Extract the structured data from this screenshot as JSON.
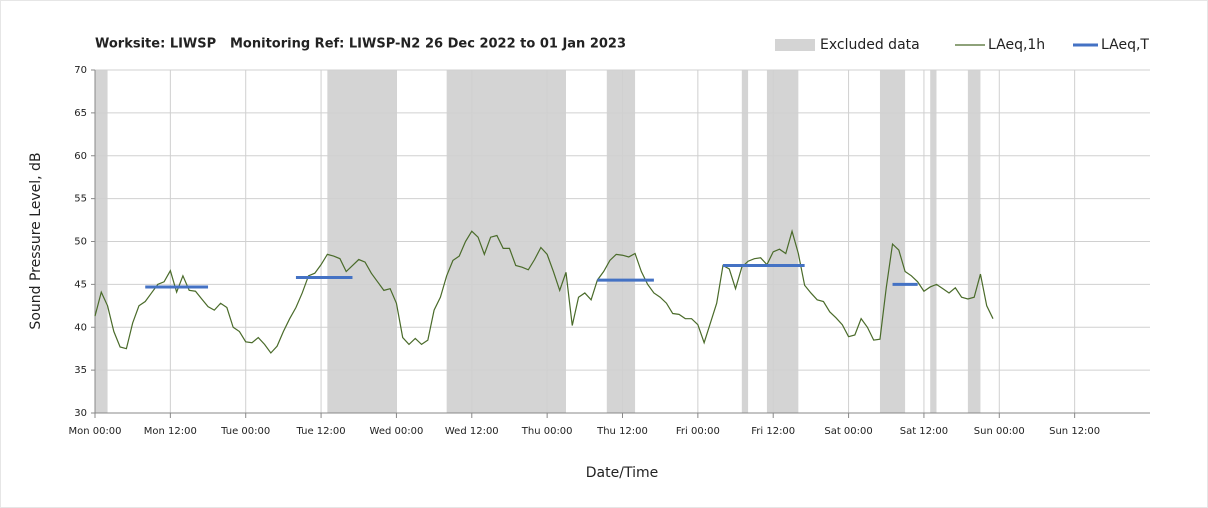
{
  "chart_data": {
    "type": "line",
    "title_parts": [
      "Worksite: LIWSP",
      "Monitoring Ref: LIWSP-N2",
      "26 Dec 2022 to 01 Jan 2023"
    ],
    "x_label": "Date/Time",
    "y_label": "Sound Pressure Level, dB",
    "xlim": [
      0,
      168
    ],
    "xticks": [
      {
        "value": 0,
        "label": "Mon 00:00"
      },
      {
        "value": 12,
        "label": "Mon 12:00"
      },
      {
        "value": 24,
        "label": "Tue 00:00"
      },
      {
        "value": 36,
        "label": "Tue 12:00"
      },
      {
        "value": 48,
        "label": "Wed 00:00"
      },
      {
        "value": 60,
        "label": "Wed 12:00"
      },
      {
        "value": 72,
        "label": "Thu 00:00"
      },
      {
        "value": 84,
        "label": "Thu 12:00"
      },
      {
        "value": 96,
        "label": "Fri 00:00"
      },
      {
        "value": 108,
        "label": "Fri 12:00"
      },
      {
        "value": 120,
        "label": "Sat 00:00"
      },
      {
        "value": 132,
        "label": "Sat 12:00"
      },
      {
        "value": 144,
        "label": "Sun 00:00"
      },
      {
        "value": 156,
        "label": "Sun 12:00"
      }
    ],
    "ylim": [
      30,
      70
    ],
    "yticks": [
      30,
      35,
      40,
      45,
      50,
      55,
      60,
      65,
      70
    ],
    "grid": true,
    "legend": "top-right",
    "excluded": {
      "name": "Excluded data",
      "color": "#d4d4d4",
      "ranges": [
        [
          0,
          2
        ],
        [
          37,
          48
        ],
        [
          56,
          75
        ],
        [
          81.5,
          86
        ],
        [
          103,
          104
        ],
        [
          107,
          112
        ],
        [
          125,
          129
        ],
        [
          133,
          134
        ],
        [
          139,
          141
        ]
      ]
    },
    "series": [
      {
        "name": "LAeq,1h",
        "color": "#4a6b2a",
        "x": [
          0,
          1,
          2,
          3,
          4,
          5,
          6,
          7,
          8,
          9,
          10,
          11,
          12,
          13,
          14,
          15,
          16,
          17,
          18,
          19,
          20,
          21,
          22,
          23,
          24,
          25,
          26,
          27,
          28,
          29,
          30,
          31,
          32,
          33,
          34,
          35,
          36,
          37,
          38,
          39,
          40,
          41,
          42,
          43,
          44,
          45,
          46,
          47,
          48,
          49,
          50,
          51,
          52,
          53,
          54,
          55,
          56,
          57,
          58,
          59,
          60,
          61,
          62,
          63,
          64,
          65,
          66,
          67,
          68,
          69,
          70,
          71,
          72,
          73,
          74,
          75,
          76,
          77,
          78,
          79,
          80,
          81,
          82,
          83,
          84,
          85,
          86,
          87,
          88,
          89,
          90,
          91,
          92,
          93,
          94,
          95,
          96,
          97,
          98,
          99,
          100,
          101,
          102,
          103,
          104,
          105,
          106,
          107,
          108,
          109,
          110,
          111,
          112,
          113,
          114,
          115,
          116,
          117,
          118,
          119,
          120,
          121,
          122,
          123,
          124,
          125,
          126,
          127,
          128,
          129,
          130,
          131,
          132,
          133,
          134,
          135,
          136,
          137,
          138,
          139,
          140,
          141,
          142,
          143
        ],
        "values": [
          41.3,
          44.1,
          42.5,
          39.5,
          37.7,
          37.5,
          40.5,
          42.5,
          43,
          44,
          45,
          45.3,
          46.6,
          44.1,
          46,
          44.3,
          44.2,
          43.3,
          42.4,
          42,
          42.8,
          42.3,
          40,
          39.5,
          38.3,
          38.2,
          38.8,
          38,
          37,
          37.8,
          39.5,
          41,
          42.3,
          44,
          46,
          46.3,
          47.3,
          48.5,
          48.3,
          48,
          46.5,
          47.2,
          47.9,
          47.6,
          46.3,
          45.3,
          44.3,
          44.5,
          42.8,
          38.8,
          38,
          38.7,
          38,
          38.5,
          42,
          43.5,
          46,
          47.8,
          48.3,
          50,
          51.2,
          50.5,
          48.5,
          50.5,
          50.7,
          49.2,
          49.2,
          47.2,
          47,
          46.7,
          47.9,
          49.3,
          48.5,
          46.5,
          44.3,
          46.4,
          40.2,
          43.5,
          44,
          43.2,
          45.5,
          46.5,
          47.8,
          48.5,
          48.4,
          48.2,
          48.6,
          46.5,
          45,
          44,
          43.5,
          42.8,
          41.6,
          41.5,
          41,
          41,
          40.3,
          38.2,
          40.5,
          42.8,
          47.2,
          46.8,
          44.5,
          47,
          47.7,
          48,
          48.1,
          47.3,
          48.8,
          49.1,
          48.6,
          51.2,
          48.6,
          44.9,
          44,
          43.2,
          43,
          41.8,
          41.1,
          40.3,
          38.9,
          39.1,
          41,
          40,
          38.5,
          38.6,
          44.6,
          49.7,
          49,
          46.5,
          46,
          45.3,
          44.2,
          44.7,
          45,
          44.5,
          44,
          44.6,
          43.5,
          43.3,
          43.5,
          46.2,
          42.5,
          41
        ]
      },
      {
        "name": "LAeq,T",
        "color": "#4472c4",
        "segments": [
          {
            "x": [
              8,
              18
            ],
            "value": 44.7
          },
          {
            "x": [
              32,
              41
            ],
            "value": 45.8
          },
          {
            "x": [
              80,
              89
            ],
            "value": 45.5
          },
          {
            "x": [
              100,
              113
            ],
            "value": 47.2
          },
          {
            "x": [
              127,
              131
            ],
            "value": 45
          }
        ]
      }
    ]
  }
}
